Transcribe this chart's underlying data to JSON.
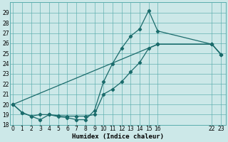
{
  "xlabel": "Humidex (Indice chaleur)",
  "bg_color": "#cce8e8",
  "grid_color": "#5aadad",
  "line_color": "#1a6b6b",
  "ylim": [
    18,
    30
  ],
  "xlim": [
    -0.3,
    23.5
  ],
  "yticks": [
    18,
    19,
    20,
    21,
    22,
    23,
    24,
    25,
    26,
    27,
    28,
    29
  ],
  "xticks": [
    0,
    1,
    2,
    3,
    4,
    5,
    6,
    7,
    8,
    9,
    10,
    11,
    12,
    13,
    14,
    15,
    16,
    22,
    23
  ],
  "series1_x": [
    0,
    1,
    2,
    3,
    4,
    5,
    6,
    7,
    8,
    9,
    10,
    11,
    12,
    13,
    14,
    15,
    16,
    22,
    23
  ],
  "series1_y": [
    20.0,
    19.2,
    18.85,
    18.5,
    19.0,
    18.8,
    18.7,
    18.5,
    18.5,
    19.4,
    22.2,
    24.0,
    25.5,
    26.7,
    27.4,
    29.2,
    27.2,
    25.9,
    24.9
  ],
  "series2_x": [
    0,
    1,
    2,
    3,
    4,
    5,
    6,
    7,
    8,
    9,
    10,
    11,
    12,
    13,
    14,
    15,
    16,
    22,
    23
  ],
  "series2_y": [
    20.0,
    19.2,
    18.85,
    19.0,
    19.0,
    18.9,
    18.85,
    18.85,
    18.85,
    19.0,
    21.0,
    21.5,
    22.2,
    23.2,
    24.1,
    25.5,
    25.9,
    25.9,
    24.9
  ],
  "series3_x": [
    0,
    16,
    22,
    23
  ],
  "series3_y": [
    20.0,
    25.9,
    25.9,
    24.9
  ]
}
